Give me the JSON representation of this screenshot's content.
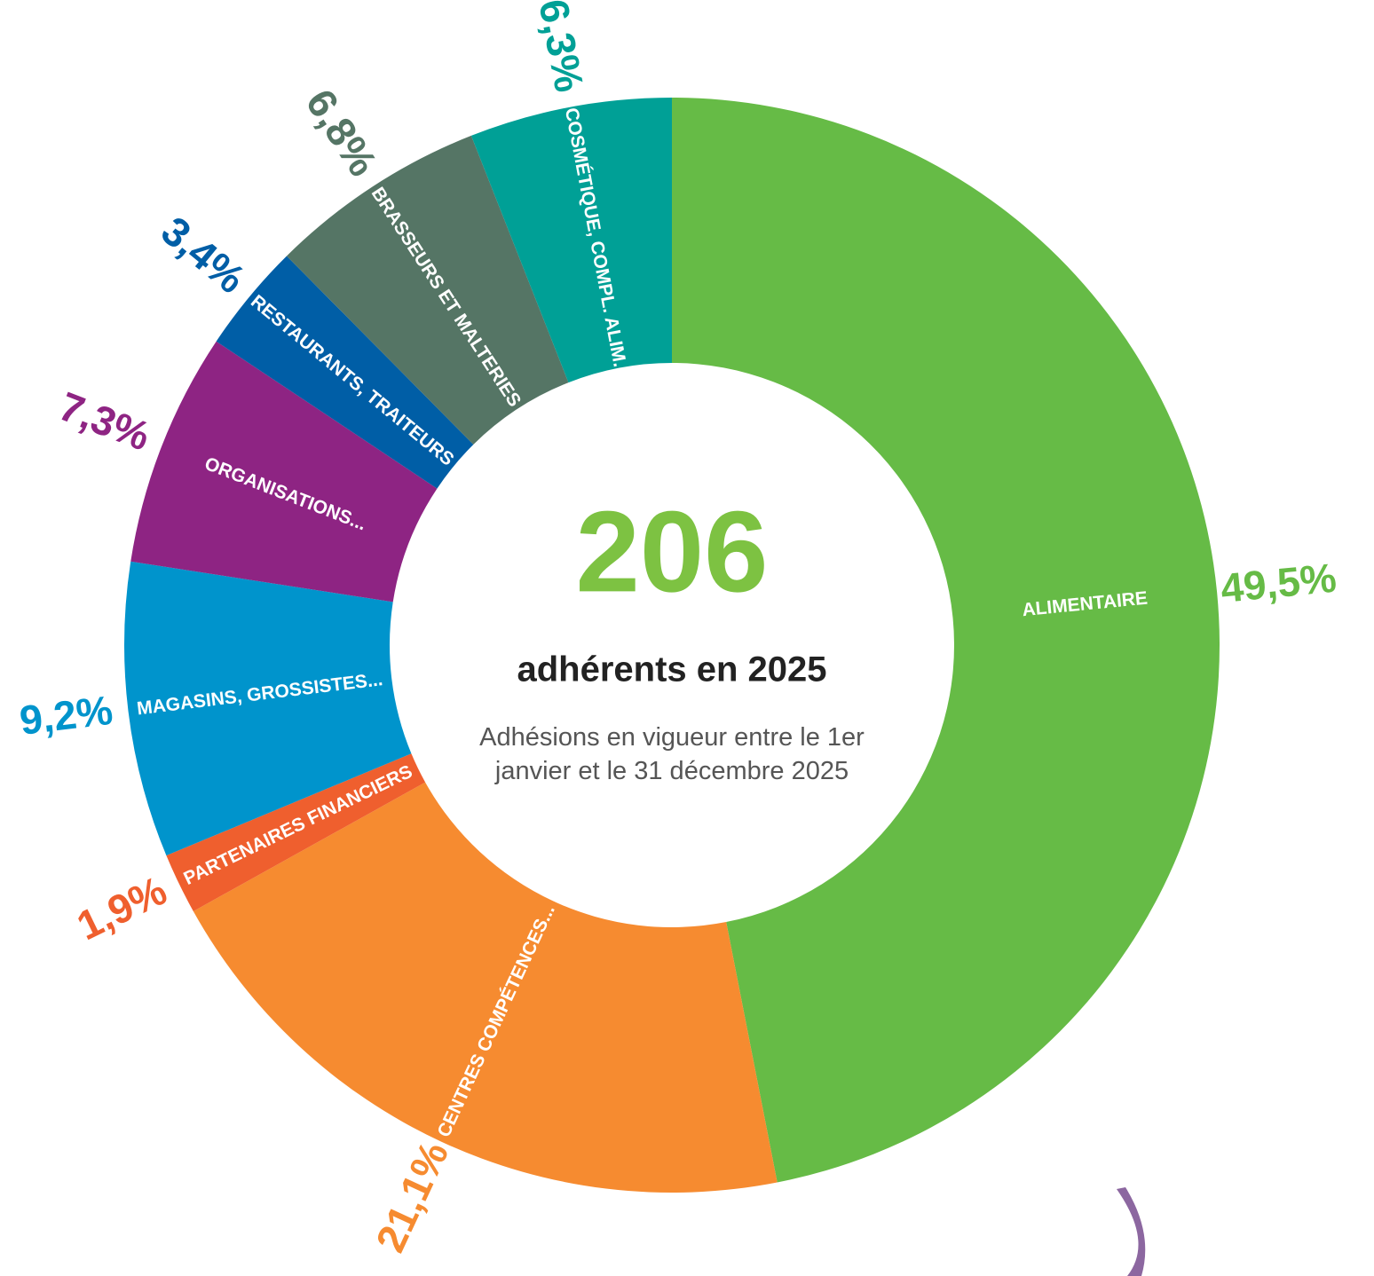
{
  "chart_data": {
    "type": "donut",
    "center_value": 206,
    "center_title": "adhérents en 2025",
    "center_subtitle": "Adhésions en vigueur entre le 1er janvier et le 31 décembre 2025",
    "categories": [
      "ALIMENTAIRE",
      "CENTRES COMPÉTENCES...",
      "PARTENAIRES FINANCIERS",
      "MAGASINS, GROSSISTES...",
      "ORGANISATIONS...",
      "RESTAURANTS, TRAITEURS",
      "BRASSEURS ET MALTERIES",
      "COSMÉTIQUE, COMPL. ALIM."
    ],
    "values": [
      49.5,
      21.1,
      1.9,
      9.2,
      7.3,
      3.4,
      6.8,
      6.3
    ],
    "value_labels": [
      "49,5%",
      "21,1%",
      "1,9%",
      "9,2%",
      "7,3%",
      "3,4%",
      "6,8%",
      "6,3%"
    ],
    "colors": [
      "#66bb46",
      "#f68b30",
      "#ef5f2e",
      "#0094cc",
      "#8e2483",
      "#005ea6",
      "#557565",
      "#00a096"
    ]
  }
}
